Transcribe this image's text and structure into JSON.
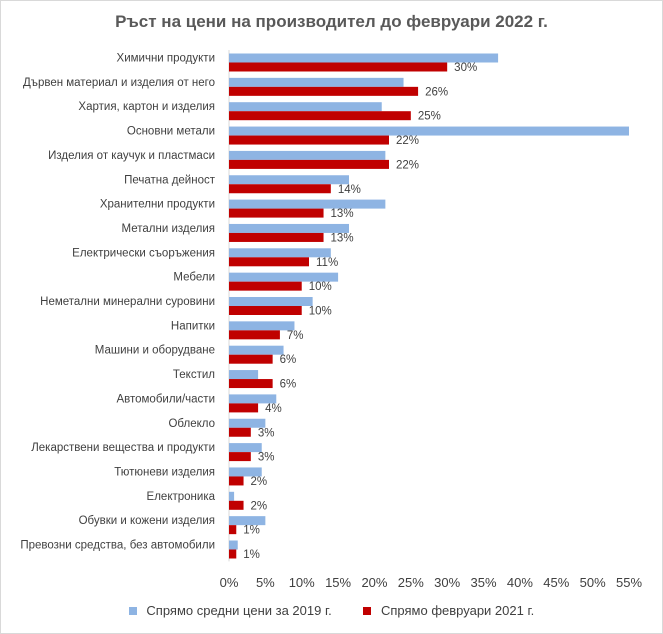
{
  "chart_data": {
    "type": "bar",
    "orientation": "horizontal",
    "title": "Ръст на цени на производител до февруари 2022 г.",
    "categories": [
      "Химични продукти",
      "Дървен материал и изделия от него",
      "Хартия, картон и изделия",
      "Основни метали",
      "Изделия от каучук и пластмаси",
      "Печатна дейност",
      "Хранителни продукти",
      "Метални изделия",
      "Електрически съоръжения",
      "Мебели",
      "Неметални минерални суровини",
      "Напитки",
      "Машини и оборудване",
      "Текстил",
      "Автомобили/части",
      "Облекло",
      "Лекарствени вещества и продукти",
      "Тютюневи изделия",
      "Електроника",
      "Обувки и кожени изделия",
      "Превозни средства, без автомобили"
    ],
    "series": [
      {
        "name": "Спрямо средни цени за 2019 г.",
        "color": "#8eb4e3",
        "values": [
          37,
          24,
          21,
          55,
          21.5,
          16.5,
          21.5,
          16.5,
          14,
          15,
          11.5,
          9,
          7.5,
          4,
          6.5,
          5,
          4.5,
          4.5,
          0.7,
          5,
          1.2
        ]
      },
      {
        "name": "Спрямо февруари 2021 г.",
        "color": "#c00000",
        "values": [
          30,
          26,
          25,
          22,
          22,
          14,
          13,
          13,
          11,
          10,
          10,
          7,
          6,
          6,
          4,
          3,
          3,
          2,
          2,
          1,
          1
        ],
        "labels": [
          "30%",
          "26%",
          "25%",
          "22%",
          "22%",
          "14%",
          "13%",
          "13%",
          "11%",
          "10%",
          "10%",
          "7%",
          "6%",
          "6%",
          "4%",
          "3%",
          "3%",
          "2%",
          "2%",
          "1%",
          "1%"
        ]
      }
    ],
    "x_ticks": [
      "0%",
      "5%",
      "10%",
      "15%",
      "20%",
      "25%",
      "30%",
      "35%",
      "40%",
      "45%",
      "50%",
      "55%"
    ],
    "xlim": [
      0,
      55
    ],
    "grid": false,
    "legend_position": "bottom"
  }
}
